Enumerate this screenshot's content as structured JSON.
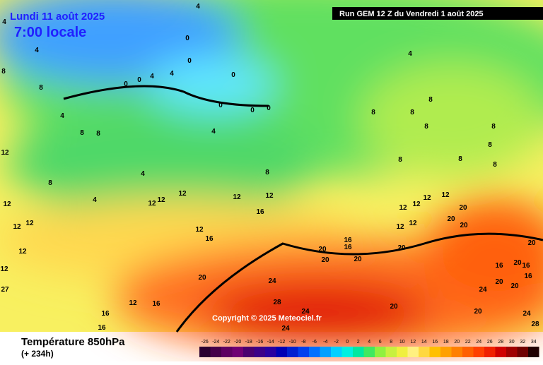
{
  "header": {
    "date": "Lundi 11 août 2025",
    "time": "7:00 locale",
    "run": "Run GEM 12 Z du Vendredi 1 août 2025"
  },
  "copyright": "Copyright © 2025 Meteociel.fr",
  "footer": {
    "title": "Température 850hPa",
    "lead": "(+ 234h)"
  },
  "contour_labels": [
    4,
    4,
    0,
    4,
    4,
    8,
    0,
    0,
    4,
    4,
    0,
    0,
    8,
    0,
    0,
    0,
    4,
    8,
    8,
    8,
    8,
    8,
    4,
    8,
    8,
    8,
    4,
    8,
    8,
    8,
    8,
    12,
    8,
    4,
    12,
    12,
    12,
    12,
    12,
    12,
    12,
    12,
    16,
    12,
    16,
    12,
    12,
    12,
    12,
    20,
    20,
    20,
    12,
    12,
    20,
    16,
    16,
    20,
    20,
    20,
    12,
    12,
    20,
    24,
    20,
    20,
    16,
    16,
    20,
    20,
    16,
    24,
    28,
    24,
    20,
    20,
    24,
    16,
    16,
    12,
    16,
    28,
    24,
    27
  ],
  "scale": {
    "values": [
      -26,
      -24,
      -22,
      -20,
      -18,
      -16,
      -14,
      -12,
      -10,
      -8,
      -6,
      -4,
      -2,
      0,
      2,
      4,
      6,
      8,
      10,
      12,
      14,
      16,
      18,
      20,
      22,
      24,
      26,
      28,
      30,
      32,
      34
    ],
    "colors": [
      "#2a0030",
      "#46004a",
      "#5e0062",
      "#700074",
      "#4a0070",
      "#3c0088",
      "#2a00a0",
      "#0000b4",
      "#0020d0",
      "#0040ee",
      "#0070ff",
      "#00a0ff",
      "#00d0ff",
      "#00f0e0",
      "#00e8a0",
      "#40e860",
      "#90f040",
      "#c8f040",
      "#f0f040",
      "#fff080",
      "#ffd840",
      "#ffc000",
      "#ffa000",
      "#ff8000",
      "#ff6000",
      "#ff4000",
      "#f02000",
      "#d00000",
      "#a00000",
      "#700000",
      "#200000"
    ]
  }
}
